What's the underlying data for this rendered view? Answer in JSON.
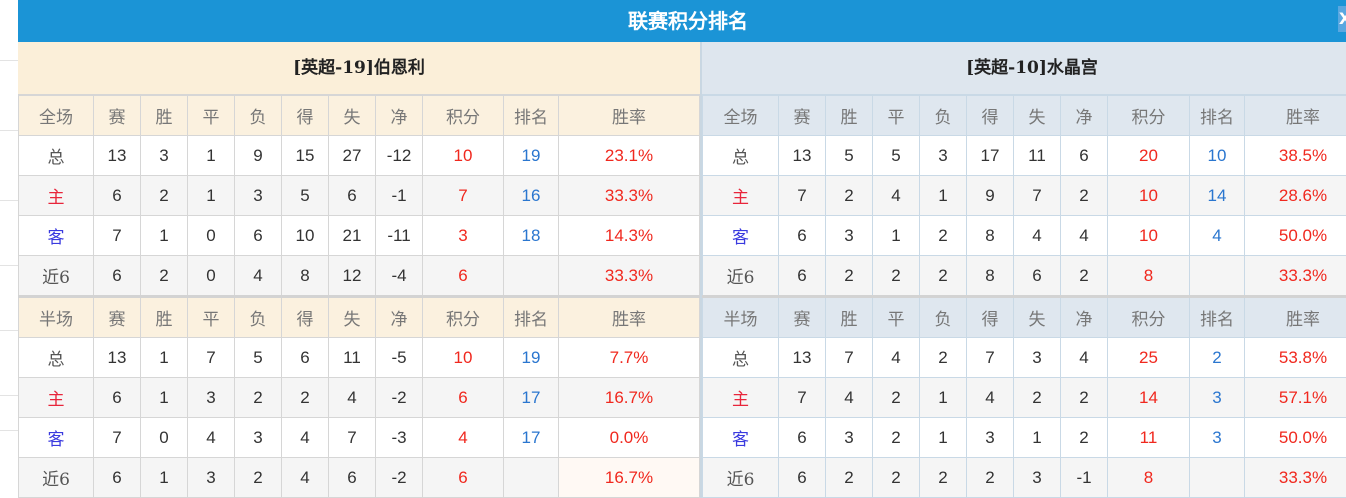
{
  "title": "联赛积分排名",
  "close_label": "X",
  "colors": {
    "header_bg": "#1b94d6",
    "points": "#f0281e",
    "rank": "#2a76cf",
    "home": "#e8253b",
    "away": "#3a3adf"
  },
  "teams": [
    {
      "name": "[英超-19]伯恩利",
      "full": {
        "headers": [
          "全场",
          "赛",
          "胜",
          "平",
          "负",
          "得",
          "失",
          "净",
          "积分",
          "排名",
          "胜率"
        ],
        "rows": [
          [
            "总",
            "13",
            "3",
            "1",
            "9",
            "15",
            "27",
            "-12",
            "10",
            "19",
            "23.1%"
          ],
          [
            "主",
            "6",
            "2",
            "1",
            "3",
            "5",
            "6",
            "-1",
            "7",
            "16",
            "33.3%"
          ],
          [
            "客",
            "7",
            "1",
            "0",
            "6",
            "10",
            "21",
            "-11",
            "3",
            "18",
            "14.3%"
          ],
          [
            "近6",
            "6",
            "2",
            "0",
            "4",
            "8",
            "12",
            "-4",
            "6",
            "",
            "33.3%"
          ]
        ]
      },
      "half": {
        "headers": [
          "半场",
          "赛",
          "胜",
          "平",
          "负",
          "得",
          "失",
          "净",
          "积分",
          "排名",
          "胜率"
        ],
        "rows": [
          [
            "总",
            "13",
            "1",
            "7",
            "5",
            "6",
            "11",
            "-5",
            "10",
            "19",
            "7.7%"
          ],
          [
            "主",
            "6",
            "1",
            "3",
            "2",
            "2",
            "4",
            "-2",
            "6",
            "17",
            "16.7%"
          ],
          [
            "客",
            "7",
            "0",
            "4",
            "3",
            "4",
            "7",
            "-3",
            "4",
            "17",
            "0.0%"
          ],
          [
            "近6",
            "6",
            "1",
            "3",
            "2",
            "4",
            "6",
            "-2",
            "6",
            "",
            "16.7%"
          ]
        ]
      }
    },
    {
      "name": "[英超-10]水晶宫",
      "full": {
        "headers": [
          "全场",
          "赛",
          "胜",
          "平",
          "负",
          "得",
          "失",
          "净",
          "积分",
          "排名",
          "胜率"
        ],
        "rows": [
          [
            "总",
            "13",
            "5",
            "5",
            "3",
            "17",
            "11",
            "6",
            "20",
            "10",
            "38.5%"
          ],
          [
            "主",
            "7",
            "2",
            "4",
            "1",
            "9",
            "7",
            "2",
            "10",
            "14",
            "28.6%"
          ],
          [
            "客",
            "6",
            "3",
            "1",
            "2",
            "8",
            "4",
            "4",
            "10",
            "4",
            "50.0%"
          ],
          [
            "近6",
            "6",
            "2",
            "2",
            "2",
            "8",
            "6",
            "2",
            "8",
            "",
            "33.3%"
          ]
        ]
      },
      "half": {
        "headers": [
          "半场",
          "赛",
          "胜",
          "平",
          "负",
          "得",
          "失",
          "净",
          "积分",
          "排名",
          "胜率"
        ],
        "rows": [
          [
            "总",
            "13",
            "7",
            "4",
            "2",
            "7",
            "3",
            "4",
            "25",
            "2",
            "53.8%"
          ],
          [
            "主",
            "7",
            "4",
            "2",
            "1",
            "4",
            "2",
            "2",
            "14",
            "3",
            "57.1%"
          ],
          [
            "客",
            "6",
            "3",
            "2",
            "1",
            "3",
            "1",
            "2",
            "11",
            "3",
            "50.0%"
          ],
          [
            "近6",
            "6",
            "2",
            "2",
            "2",
            "2",
            "3",
            "-1",
            "8",
            "",
            "33.3%"
          ]
        ]
      }
    }
  ]
}
